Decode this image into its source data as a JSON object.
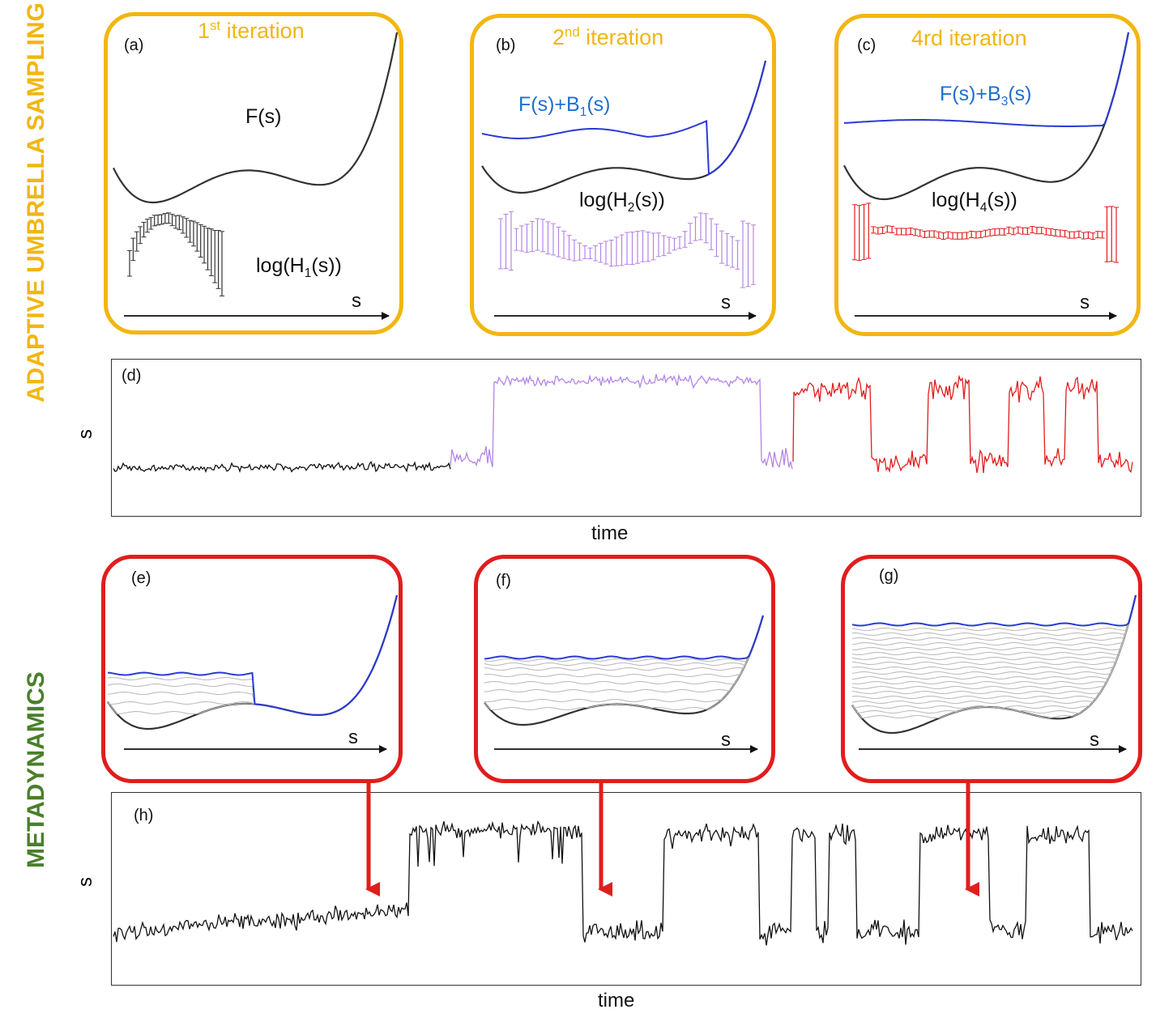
{
  "sections": {
    "top_title": "ADAPTIVE UMBRELLA SAMPLING",
    "bottom_title": "METADYNAMICS"
  },
  "colors": {
    "aus_accent": "#f2b610",
    "meta_title": "#4a7f2a",
    "meta_frame": "#e11d1d",
    "bias_blue": "#2a3ad6",
    "hist_violet": "#b484e6",
    "hist_red": "#e11d1d",
    "curve": "#333333"
  },
  "panels": {
    "a": {
      "letter": "(a)",
      "iter_num": "1",
      "iter_sup": "st",
      "iter_rest": " iteration",
      "curve_label": "F(s)",
      "hist_pre": "log(H",
      "hist_sub": "1",
      "hist_post": "(s))",
      "axis": "s"
    },
    "b": {
      "letter": "(b)",
      "iter_num": "2",
      "iter_sup": "nd",
      "iter_rest": " iteration",
      "bias_pre": "F(s)+B",
      "bias_sub": "1",
      "bias_post": "(s)",
      "hist_pre": "log(H",
      "hist_sub": "2",
      "hist_post": "(s))",
      "axis": "s"
    },
    "c": {
      "letter": "(c)",
      "iter_text": "4rd iteration",
      "bias_pre": "F(s)+B",
      "bias_sub": "3",
      "bias_post": "(s)",
      "hist_pre": "log(H",
      "hist_sub": "4",
      "hist_post": "(s))",
      "axis": "s"
    },
    "d": {
      "letter": "(d)",
      "ylabel": "s",
      "xlabel": "time"
    },
    "e": {
      "letter": "(e)",
      "axis": "s"
    },
    "f": {
      "letter": "(f)",
      "axis": "s"
    },
    "g": {
      "letter": "(g)",
      "axis": "s"
    },
    "h": {
      "letter": "(h)",
      "ylabel": "s",
      "xlabel": "time"
    }
  }
}
